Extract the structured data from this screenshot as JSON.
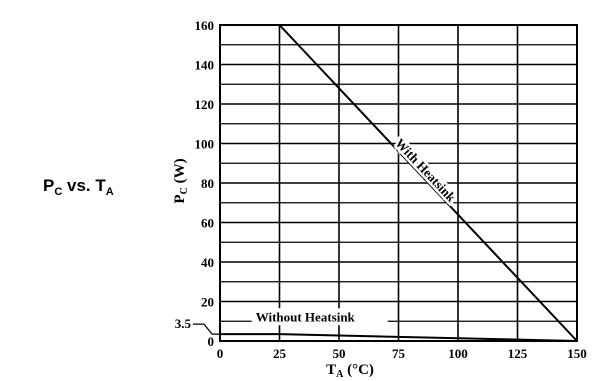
{
  "figure": {
    "title_main_a": "P",
    "title_sub_a": "C",
    "title_mid": " vs. T",
    "title_sub_b": "A"
  },
  "chart_data": {
    "type": "line",
    "title": "PC vs. TA",
    "xlabel_main": "T",
    "xlabel_sub": "A",
    "xlabel_unit": " (°C)",
    "ylabel_main": "P",
    "ylabel_sub": "C",
    "ylabel_unit": " (W)",
    "xlim": [
      0,
      150
    ],
    "ylim": [
      0,
      160
    ],
    "x_ticks": [
      0,
      25,
      50,
      75,
      100,
      125,
      150
    ],
    "y_ticks": [
      0,
      20,
      40,
      60,
      80,
      100,
      120,
      140,
      160
    ],
    "y_extra_tick": "3.5",
    "grid": true,
    "series": [
      {
        "name": "With Heatsink",
        "points": [
          [
            25,
            160
          ],
          [
            150,
            0
          ]
        ]
      },
      {
        "name": "Without Heatsink",
        "points": [
          [
            0,
            3.5
          ],
          [
            25,
            3.5
          ],
          [
            150,
            0
          ]
        ]
      }
    ]
  }
}
